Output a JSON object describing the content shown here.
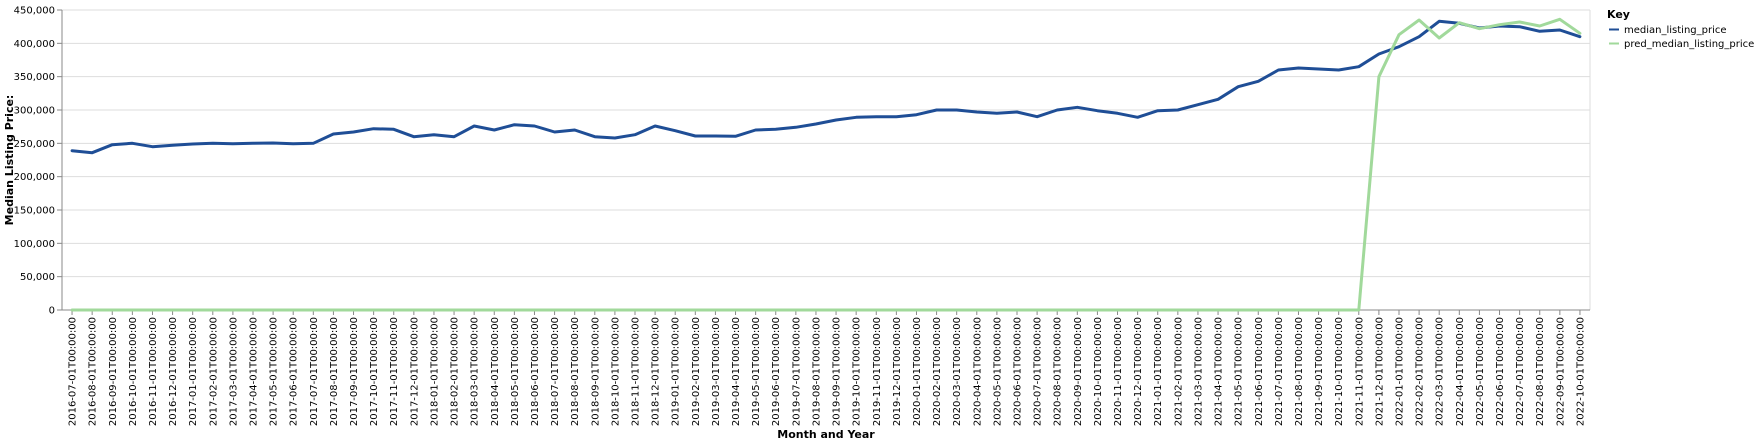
{
  "chart_data": {
    "type": "line",
    "xlabel": "Month and Year",
    "ylabel": "Median Listing Price:",
    "ylim": [
      0,
      450000
    ],
    "yticks": [
      0,
      50000,
      100000,
      150000,
      200000,
      250000,
      300000,
      350000,
      400000,
      450000
    ],
    "ytick_labels": [
      "0",
      "50,000",
      "100,000",
      "150,000",
      "200,000",
      "250,000",
      "300,000",
      "350,000",
      "400,000",
      "450,000"
    ],
    "grid": true,
    "legend": {
      "title": "Key",
      "placement": "right"
    },
    "x": [
      "2016-07-01T00:00:00",
      "2016-08-01T00:00:00",
      "2016-09-01T00:00:00",
      "2016-10-01T00:00:00",
      "2016-11-01T00:00:00",
      "2016-12-01T00:00:00",
      "2017-01-01T00:00:00",
      "2017-02-01T00:00:00",
      "2017-03-01T00:00:00",
      "2017-04-01T00:00:00",
      "2017-05-01T00:00:00",
      "2017-06-01T00:00:00",
      "2017-07-01T00:00:00",
      "2017-08-01T00:00:00",
      "2017-09-01T00:00:00",
      "2017-10-01T00:00:00",
      "2017-11-01T00:00:00",
      "2017-12-01T00:00:00",
      "2018-01-01T00:00:00",
      "2018-02-01T00:00:00",
      "2018-03-01T00:00:00",
      "2018-04-01T00:00:00",
      "2018-05-01T00:00:00",
      "2018-06-01T00:00:00",
      "2018-07-01T00:00:00",
      "2018-08-01T00:00:00",
      "2018-09-01T00:00:00",
      "2018-10-01T00:00:00",
      "2018-11-01T00:00:00",
      "2018-12-01T00:00:00",
      "2019-01-01T00:00:00",
      "2019-02-01T00:00:00",
      "2019-03-01T00:00:00",
      "2019-04-01T00:00:00",
      "2019-05-01T00:00:00",
      "2019-06-01T00:00:00",
      "2019-07-01T00:00:00",
      "2019-08-01T00:00:00",
      "2019-09-01T00:00:00",
      "2019-10-01T00:00:00",
      "2019-11-01T00:00:00",
      "2019-12-01T00:00:00",
      "2020-01-01T00:00:00",
      "2020-02-01T00:00:00",
      "2020-03-01T00:00:00",
      "2020-04-01T00:00:00",
      "2020-05-01T00:00:00",
      "2020-06-01T00:00:00",
      "2020-07-01T00:00:00",
      "2020-08-01T00:00:00",
      "2020-09-01T00:00:00",
      "2020-10-01T00:00:00",
      "2020-11-01T00:00:00",
      "2020-12-01T00:00:00",
      "2021-01-01T00:00:00",
      "2021-02-01T00:00:00",
      "2021-03-01T00:00:00",
      "2021-04-01T00:00:00",
      "2021-05-01T00:00:00",
      "2021-06-01T00:00:00",
      "2021-07-01T00:00:00",
      "2021-08-01T00:00:00",
      "2021-09-01T00:00:00",
      "2021-10-01T00:00:00",
      "2021-11-01T00:00:00",
      "2021-12-01T00:00:00",
      "2022-01-01T00:00:00",
      "2022-02-01T00:00:00",
      "2022-03-01T00:00:00",
      "2022-04-01T00:00:00",
      "2022-05-01T00:00:00",
      "2022-06-01T00:00:00",
      "2022-07-01T00:00:00",
      "2022-08-01T00:00:00",
      "2022-09-01T00:00:00",
      "2022-10-01T00:00:00"
    ],
    "series": [
      {
        "name": "median_listing_price",
        "color": "#1f4e96",
        "values": [
          239000,
          236000,
          248000,
          250000,
          245000,
          247000,
          249000,
          250000,
          249500,
          250000,
          250500,
          249500,
          250000,
          264000,
          267000,
          272000,
          271000,
          260000,
          263000,
          260000,
          276000,
          270000,
          278000,
          276000,
          267000,
          270000,
          260000,
          258000,
          263000,
          276000,
          269000,
          261000,
          261000,
          260500,
          270000,
          271000,
          274000,
          279000,
          285000,
          289000,
          290000,
          290000,
          293000,
          300000,
          300000,
          297000,
          295000,
          297000,
          290000,
          300000,
          304000,
          299000,
          295000,
          289000,
          299000,
          300000,
          308000,
          316000,
          335000,
          343000,
          360000,
          363000,
          361500,
          360000,
          365000,
          384000,
          395000,
          410000,
          433000,
          430000,
          423000,
          426000,
          425000,
          418000,
          420000,
          410000
        ]
      },
      {
        "name": "pred_median_listing_price",
        "color": "#a1d99b",
        "values": [
          0,
          0,
          0,
          0,
          0,
          0,
          0,
          0,
          0,
          0,
          0,
          0,
          0,
          0,
          0,
          0,
          0,
          0,
          0,
          0,
          0,
          0,
          0,
          0,
          0,
          0,
          0,
          0,
          0,
          0,
          0,
          0,
          0,
          0,
          0,
          0,
          0,
          0,
          0,
          0,
          0,
          0,
          0,
          0,
          0,
          0,
          0,
          0,
          0,
          0,
          0,
          0,
          0,
          0,
          0,
          0,
          0,
          0,
          0,
          0,
          0,
          0,
          0,
          0,
          0,
          350000,
          413000,
          435000,
          408000,
          431000,
          422000,
          428000,
          432000,
          426000,
          436000,
          415000
        ]
      }
    ]
  }
}
